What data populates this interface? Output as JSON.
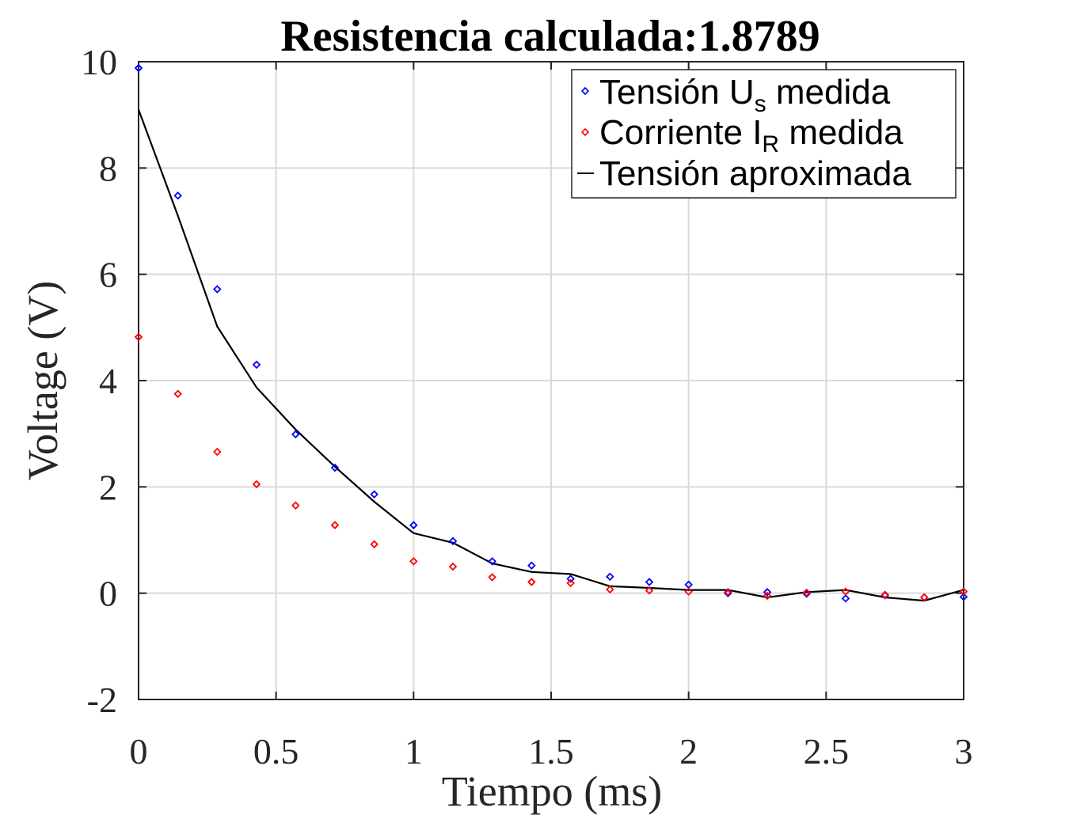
{
  "chart_data": {
    "type": "scatter",
    "title": "Resistencia calculada:1.8789",
    "xlabel": "Tiempo (ms)",
    "ylabel": "Voltage (V)",
    "xlim": [
      0,
      3
    ],
    "ylim": [
      -2,
      10
    ],
    "xticks": [
      0,
      0.5,
      1,
      1.5,
      2,
      2.5,
      3
    ],
    "xtick_labels": [
      "0",
      "0.5",
      "1",
      "1.5",
      "2",
      "2.5",
      "3"
    ],
    "yticks": [
      -2,
      0,
      2,
      4,
      6,
      8,
      10
    ],
    "ytick_labels": [
      "-2",
      "0",
      "2",
      "4",
      "6",
      "8",
      "10"
    ],
    "grid": true,
    "legend_position": "top-right",
    "x": [
      0,
      0.143,
      0.286,
      0.429,
      0.571,
      0.714,
      0.857,
      1.0,
      1.143,
      1.286,
      1.429,
      1.571,
      1.714,
      1.857,
      2.0,
      2.143,
      2.286,
      2.429,
      2.571,
      2.714,
      2.857,
      3.0
    ],
    "series": [
      {
        "name": "Tensión U",
        "name_sub": "s",
        "name_suffix": " medida",
        "marker": "diamond",
        "color": "#0000ff",
        "values": [
          9.88,
          7.48,
          5.72,
          4.3,
          2.99,
          2.36,
          1.86,
          1.28,
          0.98,
          0.6,
          0.52,
          0.27,
          0.31,
          0.21,
          0.16,
          0.0,
          0.02,
          -0.01,
          -0.1,
          -0.04,
          -0.08,
          -0.07
        ]
      },
      {
        "name": "Corriente I",
        "name_sub": "R",
        "name_suffix": " medida",
        "marker": "diamond",
        "color": "#ff0000",
        "values": [
          4.82,
          3.75,
          2.66,
          2.05,
          1.65,
          1.28,
          0.92,
          0.6,
          0.5,
          0.3,
          0.21,
          0.19,
          0.07,
          0.05,
          0.03,
          0.02,
          -0.05,
          0.01,
          0.03,
          -0.03,
          -0.08,
          0.03
        ]
      },
      {
        "name": "Tensión aproximada",
        "marker": "line",
        "color": "#000000",
        "values": [
          9.1,
          7.1,
          5.02,
          3.87,
          3.08,
          2.38,
          1.72,
          1.13,
          0.95,
          0.56,
          0.4,
          0.36,
          0.13,
          0.1,
          0.06,
          0.06,
          -0.08,
          0.02,
          0.06,
          -0.08,
          -0.14,
          0.06
        ]
      }
    ]
  }
}
